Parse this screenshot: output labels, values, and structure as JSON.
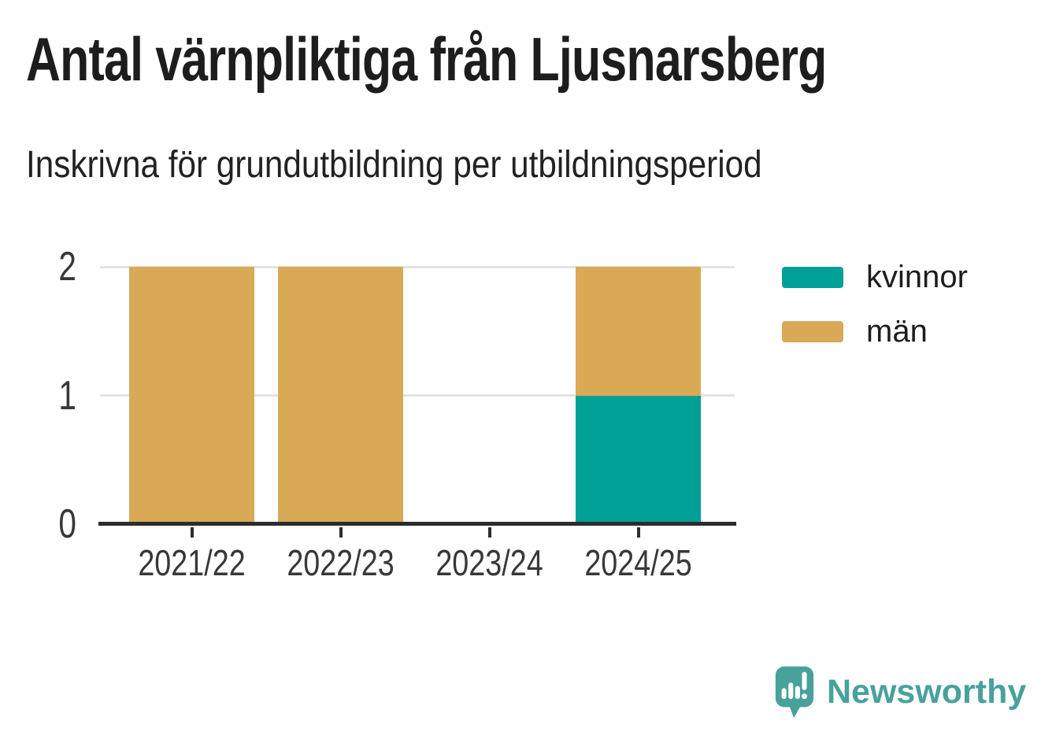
{
  "chart_data": {
    "type": "bar",
    "stacked": true,
    "title": "Antal värnpliktiga från Ljusnarsberg",
    "subtitle": "Inskrivna för grundutbildning per utbildningsperiod",
    "categories": [
      "2021/22",
      "2022/23",
      "2023/24",
      "2024/25"
    ],
    "series": [
      {
        "name": "kvinnor",
        "color": "#00a097",
        "values": [
          0,
          0,
          0,
          1
        ]
      },
      {
        "name": "män",
        "color": "#d9a955",
        "values": [
          2,
          2,
          0,
          1
        ]
      }
    ],
    "xlabel": "",
    "ylabel": "",
    "ylim": [
      0,
      2
    ],
    "yticks": [
      0,
      1,
      2
    ],
    "grid": true,
    "legend_position": "right",
    "axis_color": "#2d2d2d",
    "grid_color": "#e3e3e3"
  },
  "branding": {
    "logo_text": "Newsworthy",
    "logo_color": "#48a29b",
    "logo_icon": "newsworthy-speech-bubble-bar-chart-icon"
  }
}
